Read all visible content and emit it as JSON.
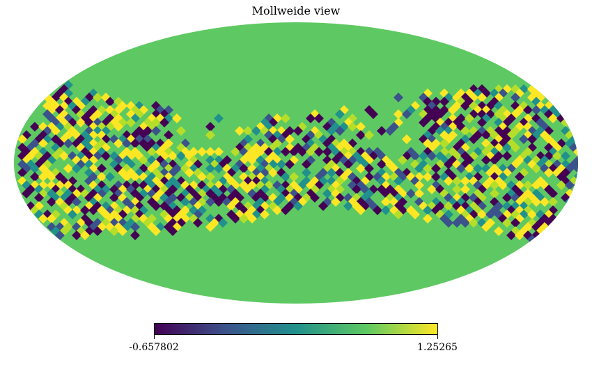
{
  "title": "Mollweide view",
  "colormap": "viridis",
  "colors": {
    "background": "#5ec962",
    "viridis_stops": [
      "#440154",
      "#3b528b",
      "#21918c",
      "#5ec962",
      "#fde725"
    ]
  },
  "colorbar": {
    "min_label": "-0.657802",
    "max_label": "1.25265",
    "min": -0.657802,
    "max": 1.25265
  },
  "chart_data": {
    "type": "heatmap",
    "projection": "Mollweide",
    "title": "Mollweide view",
    "value_range": [
      -0.657802,
      1.25265
    ],
    "fill_value_fraction": 0.75,
    "feature": "noisy band of pixels near the equator (galactic-plane-like mask), uniform elsewhere"
  }
}
